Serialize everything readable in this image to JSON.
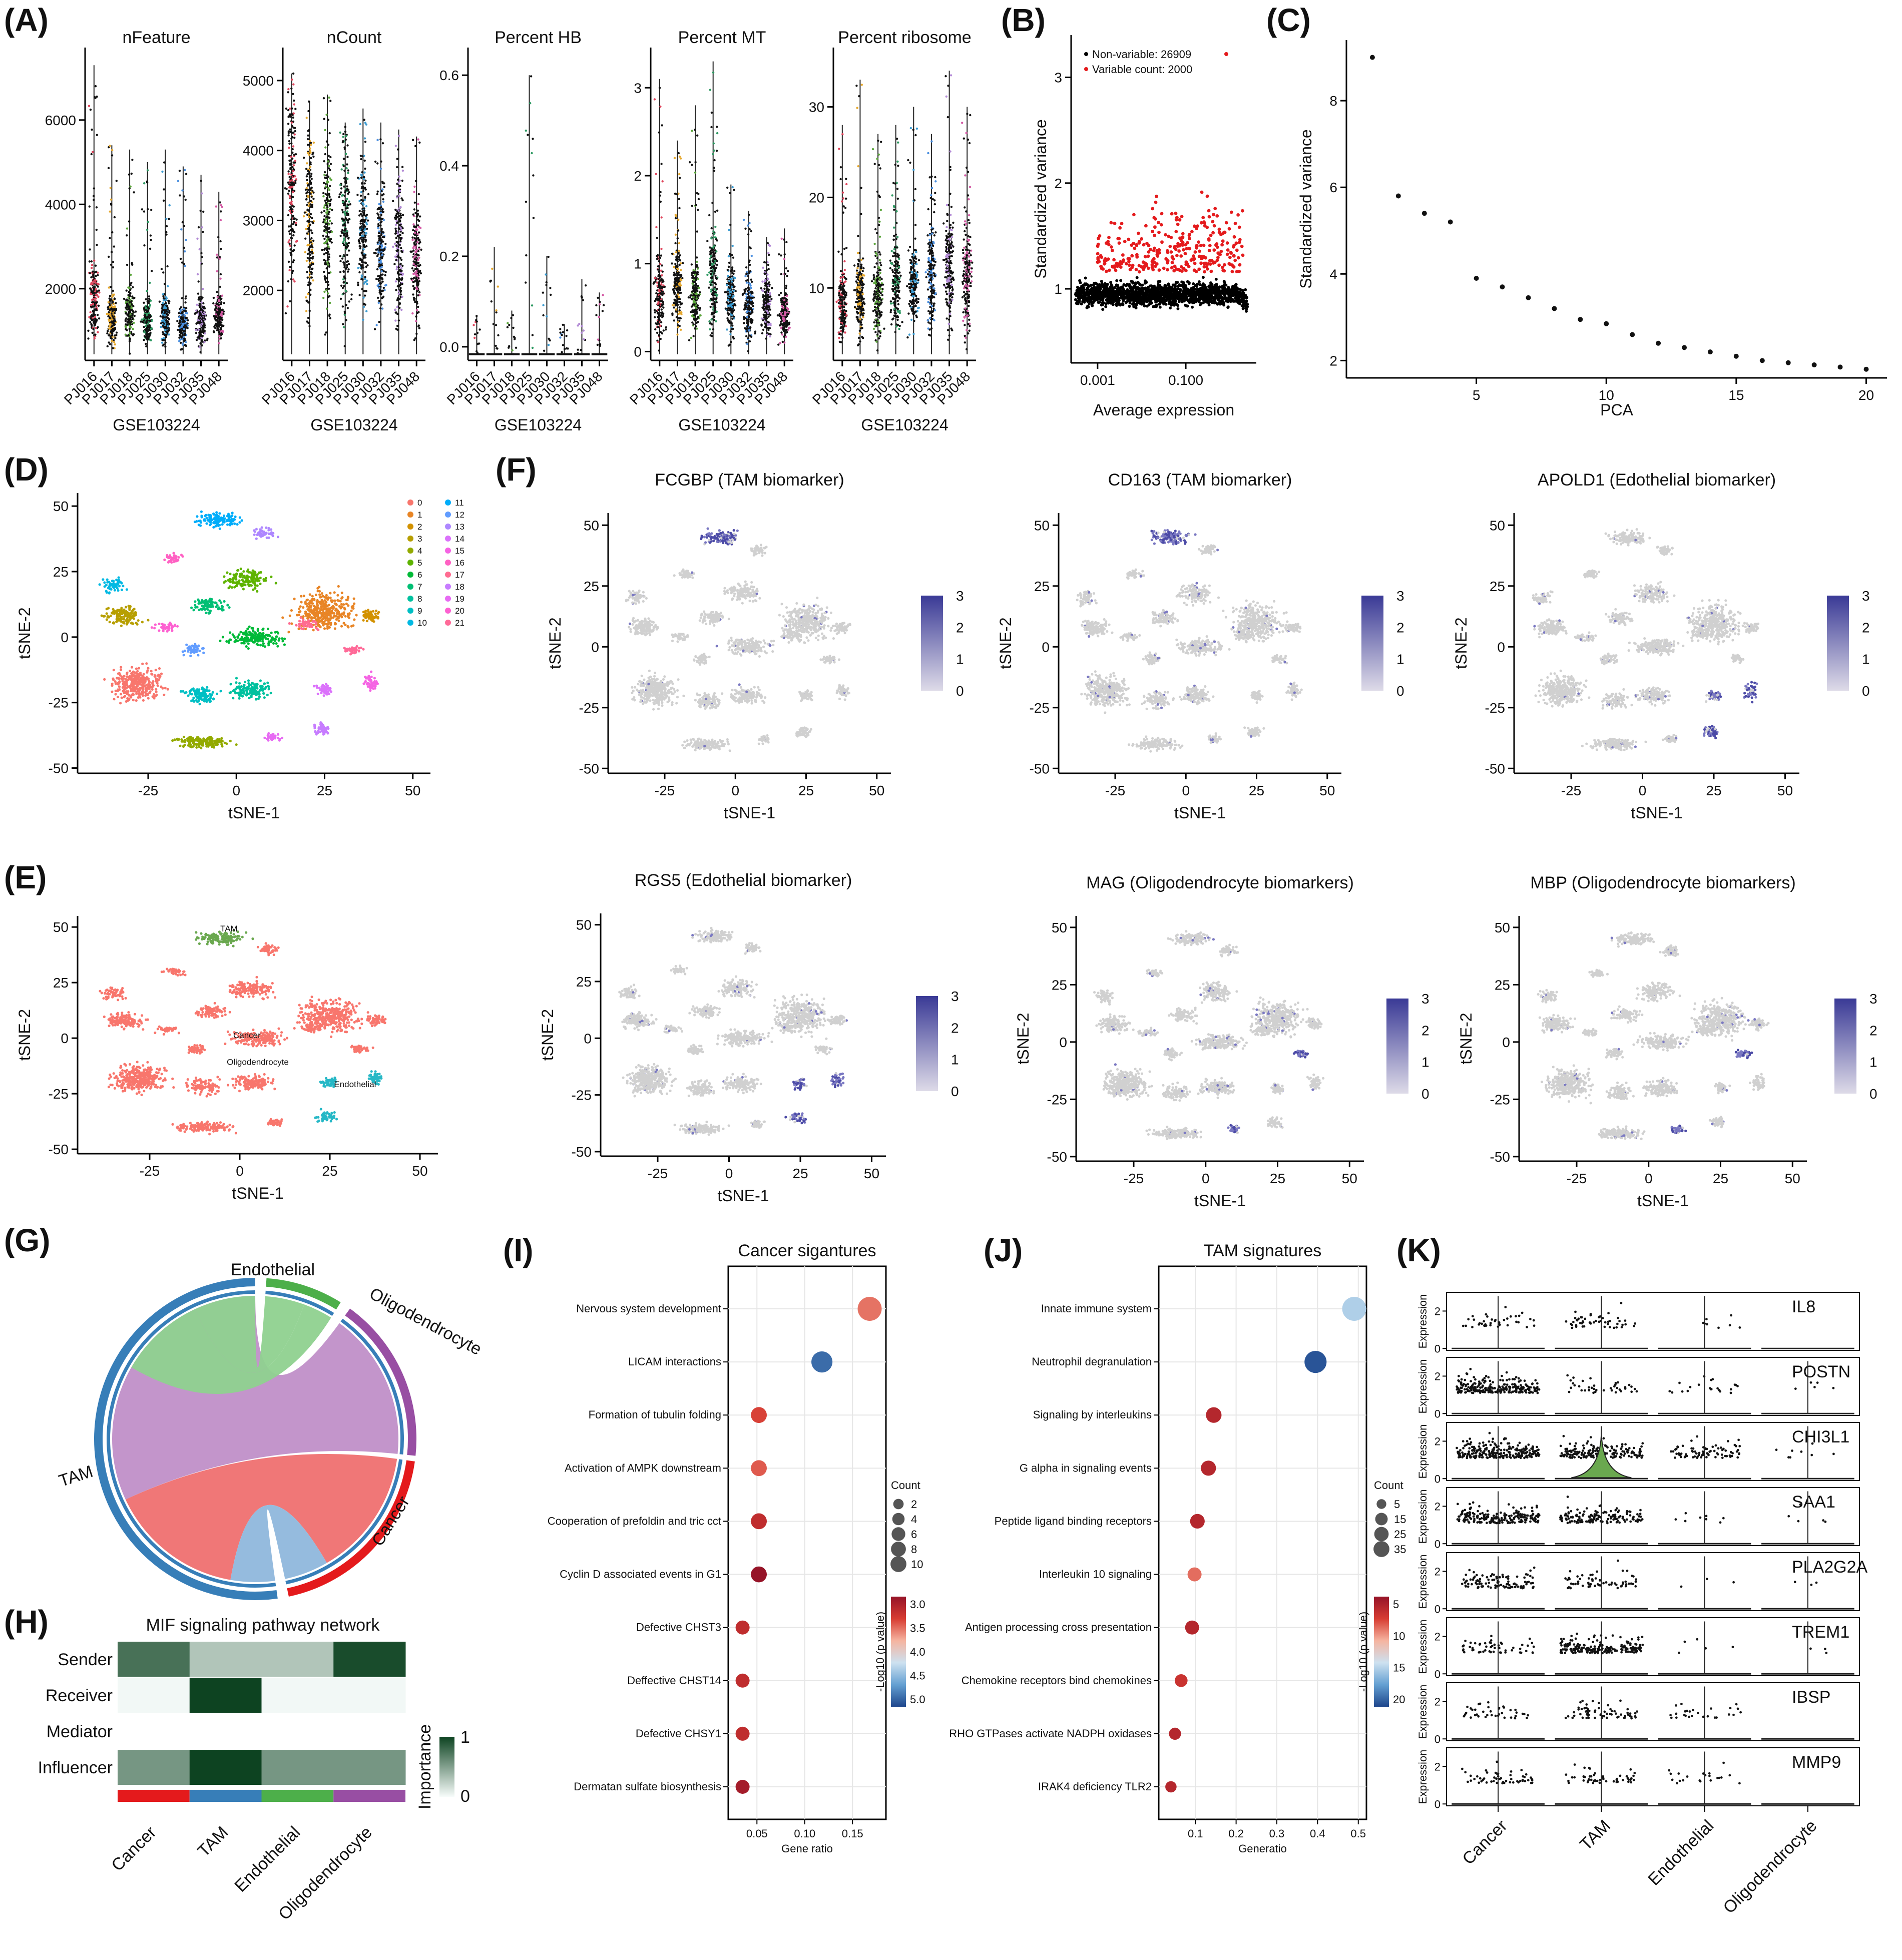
{
  "chart_data": [
    {
      "panel": "(A)",
      "type": "violin",
      "xlabel": "GSE103224",
      "samples": [
        "PJ016",
        "PJ017",
        "PJ018",
        "PJ025",
        "PJ030",
        "PJ032",
        "PJ035",
        "PJ048"
      ],
      "sample_colors": [
        "#e0455c",
        "#e6a82e",
        "#5ba53b",
        "#2f9a63",
        "#3a9bd1",
        "#4a8fe0",
        "#b38bd6",
        "#d45aa5"
      ],
      "subplots": [
        {
          "title": "nFeature",
          "ylim": [
            300,
            7600
          ],
          "yticks": [
            2000,
            4000,
            6000
          ],
          "tick_labels": [
            "2000",
            "4000",
            "6000"
          ],
          "medians": [
            1700,
            1300,
            1350,
            1200,
            1250,
            1150,
            1200,
            1300
          ],
          "upper": [
            7300,
            5400,
            5300,
            5000,
            5300,
            4900,
            4700,
            4300
          ]
        },
        {
          "title": "nCount",
          "ylim": [
            1000,
            5400
          ],
          "yticks": [
            2000,
            3000,
            4000,
            5000
          ],
          "tick_labels": [
            "2000",
            "3000",
            "4000",
            "5000"
          ],
          "medians": [
            3400,
            2900,
            2900,
            2850,
            2700,
            2500,
            2500,
            2400
          ],
          "upper": [
            5100,
            4700,
            4800,
            4400,
            4600,
            4400,
            4300,
            4200
          ]
        },
        {
          "title": "Percent HB",
          "ylim": [
            -0.03,
            0.65
          ],
          "yticks": [
            0.0,
            0.2,
            0.4,
            0.6
          ],
          "tick_labels": [
            "0.0",
            "0.2",
            "0.4",
            "0.6"
          ],
          "medians": [
            0,
            0,
            0,
            0,
            0,
            0,
            0,
            0
          ],
          "upper": [
            0.07,
            0.22,
            0.08,
            0.6,
            0.2,
            0.05,
            0.15,
            0.12
          ]
        },
        {
          "title": "Percent MT",
          "ylim": [
            -0.1,
            3.4
          ],
          "yticks": [
            0,
            1,
            2,
            3
          ],
          "tick_labels": [
            "0",
            "1",
            "2",
            "3"
          ],
          "medians": [
            0.6,
            0.7,
            0.6,
            0.8,
            0.6,
            0.5,
            0.5,
            0.4
          ],
          "upper": [
            3.1,
            2.4,
            2.8,
            3.3,
            1.9,
            1.6,
            1.3,
            1.4
          ]
        },
        {
          "title": "Percent ribosome",
          "ylim": [
            2,
            36
          ],
          "yticks": [
            10,
            20,
            30
          ],
          "tick_labels": [
            "10",
            "20",
            "30"
          ],
          "medians": [
            8,
            9,
            9,
            10,
            10,
            11,
            12,
            11
          ],
          "upper": [
            28,
            33,
            27,
            28,
            30,
            27,
            34,
            30
          ]
        }
      ]
    },
    {
      "panel": "(B)",
      "type": "scatter",
      "xlabel": "Average expression",
      "ylabel": "Standardized variance",
      "xlog_range": [
        -3.6,
        0.6
      ],
      "xticks": [
        -3,
        -1
      ],
      "xtick_labels": [
        "0.001",
        "0.100"
      ],
      "ylim": [
        0.3,
        3.4
      ],
      "yticks": [
        1,
        2,
        3
      ],
      "ytick_labels": [
        "1",
        "2",
        "3"
      ],
      "legend": [
        "Non-variable: 26909",
        "Variable count: 2000"
      ],
      "series_colors": [
        "#000000",
        "#e41a1c"
      ],
      "nonvariable_count": 26909,
      "variable_count": 2000
    },
    {
      "panel": "(C)",
      "type": "scatter",
      "xlabel": "PCA",
      "ylabel": "Standardized variance",
      "x": [
        1,
        2,
        3,
        4,
        5,
        6,
        7,
        8,
        9,
        10,
        11,
        12,
        13,
        14,
        15,
        16,
        17,
        18,
        19,
        20
      ],
      "y": [
        9.0,
        5.8,
        5.4,
        5.2,
        3.9,
        3.7,
        3.45,
        3.2,
        2.95,
        2.85,
        2.6,
        2.4,
        2.3,
        2.2,
        2.1,
        2.0,
        1.95,
        1.9,
        1.85,
        1.8
      ],
      "xlim": [
        0,
        20.8
      ],
      "ylim": [
        1.6,
        9.4
      ],
      "xticks": [
        5,
        10,
        15,
        20
      ],
      "yticks": [
        2,
        4,
        6,
        8
      ]
    },
    {
      "panel": "(D)",
      "type": "scatter",
      "title": "",
      "xlabel": "tSNE-1",
      "ylabel": "tSNE-2",
      "xlim": [
        -45,
        55
      ],
      "ylim": [
        -52,
        55
      ],
      "xticks": [
        -25,
        0,
        25,
        50
      ],
      "yticks": [
        -50,
        -25,
        0,
        25,
        50
      ],
      "clusters": [
        "0",
        "1",
        "2",
        "3",
        "4",
        "5",
        "6",
        "7",
        "8",
        "9",
        "10",
        "11",
        "12",
        "13",
        "14",
        "15",
        "16",
        "17",
        "18",
        "19",
        "20",
        "21"
      ],
      "cluster_colors": [
        "#F8766D",
        "#E88526",
        "#D39200",
        "#B79F00",
        "#93AA00",
        "#5EB300",
        "#00BA38",
        "#00BF74",
        "#00C19F",
        "#00BFC4",
        "#00B9E3",
        "#00ADFA",
        "#619CFF",
        "#AE87FF",
        "#DB72FB",
        "#F564E3",
        "#FF61C3",
        "#FF6C91",
        "#C77CFF",
        "#E76BF3",
        "#FD61D1",
        "#FF6A98"
      ]
    },
    {
      "panel": "(E)",
      "type": "scatter",
      "xlabel": "tSNE-1",
      "ylabel": "tSNE-2",
      "xlim": [
        -45,
        55
      ],
      "ylim": [
        -52,
        55
      ],
      "xticks": [
        -25,
        0,
        25,
        50
      ],
      "yticks": [
        -50,
        -25,
        0,
        25,
        50
      ],
      "labels": [
        "TAM",
        "Cancer",
        "Oligodendrocyte",
        "Endothelial"
      ],
      "label_colors": [
        "#6aa84f",
        "#f8766d",
        "#f8766d",
        "#26b8c6"
      ]
    },
    {
      "panel": "(F)",
      "type": "scatter",
      "xlabel": "tSNE-1",
      "ylabel": "tSNE-2",
      "xlim": [
        -45,
        55
      ],
      "ylim": [
        -52,
        55
      ],
      "xticks": [
        -25,
        0,
        25,
        50
      ],
      "yticks": [
        -50,
        -25,
        0,
        25,
        50
      ],
      "colorbar_ticks": [
        "0",
        "1",
        "2",
        "3"
      ],
      "colorbar_colors": [
        "#dedbe8",
        "#3a3a96"
      ],
      "subplots": [
        {
          "title": "FCGBP (TAM biomarker)",
          "hot": "TAM"
        },
        {
          "title": "CD163 (TAM biomarker)",
          "hot": "TAM"
        },
        {
          "title": "APOLD1 (Edothelial biomarker)",
          "hot": "Endothelial"
        },
        {
          "title": "RGS5 (Edothelial biomarker)",
          "hot": "Endothelial"
        },
        {
          "title": "MAG (Oligodendrocyte biomarkers)",
          "hot": "Oligodendrocyte"
        },
        {
          "title": "MBP (Oligodendrocyte biomarkers)",
          "hot": "Oligodendrocyte"
        }
      ]
    },
    {
      "panel": "(G)",
      "type": "chord",
      "sectors": [
        {
          "name": "Endothelial",
          "color": "#4daf4a"
        },
        {
          "name": "Oligodendrocyte",
          "color": "#984ea3"
        },
        {
          "name": "Cancer",
          "color": "#e41a1c"
        },
        {
          "name": "TAM",
          "color": "#377eb8"
        }
      ],
      "links": [
        {
          "from": "TAM",
          "to": "Oligodendrocyte",
          "color": "#c08fc8"
        },
        {
          "from": "TAM",
          "to": "Cancer",
          "color": "#ef7070"
        },
        {
          "from": "TAM",
          "to": "Endothelial",
          "color": "#8fd18f"
        },
        {
          "from": "TAM",
          "to": "TAM",
          "color": "#8fb7dc"
        },
        {
          "from": "Endothelial",
          "to": "TAM",
          "color": "#8fd18f"
        }
      ]
    },
    {
      "panel": "(H)",
      "type": "heatmap",
      "title": "MIF signaling pathway network",
      "rows": [
        "Sender",
        "Receiver",
        "Mediator",
        "Influencer"
      ],
      "columns": [
        "Cancer",
        "TAM",
        "Endothelial",
        "Oligodendrocyte"
      ],
      "column_colors": [
        "#e41a1c",
        "#377eb8",
        "#4daf4a",
        "#984ea3"
      ],
      "values": [
        [
          0.75,
          0.3,
          0.3,
          0.95
        ],
        [
          0.02,
          1.0,
          0.02,
          0.02
        ],
        [
          0,
          0,
          0,
          0
        ],
        [
          0.55,
          1.0,
          0.55,
          0.55
        ]
      ],
      "colorbar_label": "Importance",
      "colorbar_ticks": [
        "0",
        "1"
      ]
    },
    {
      "panel": "(I)",
      "type": "scatter",
      "title": "Cancer sigantures",
      "xlabel": "Gene ratio",
      "xlim": [
        0.02,
        0.185
      ],
      "xticks": [
        0.05,
        0.1,
        0.15
      ],
      "xtick_labels": [
        "0.05",
        "0.10",
        "0.15"
      ],
      "terms": [
        "Nervous system development",
        "LICAM interactions",
        "Formation of tubulin folding",
        "Activation of AMPK downstream",
        "Cooperation of prefoldin and  tric cct",
        "Cyclin D associated events in G1",
        "Defective CHST3",
        "Deffective CHST14",
        "Defective CHSY1",
        "Dermatan sulfate biosynthesis"
      ],
      "gene_ratio": [
        0.168,
        0.118,
        0.052,
        0.052,
        0.052,
        0.052,
        0.035,
        0.035,
        0.035,
        0.035
      ],
      "count": [
        10,
        7,
        3,
        3,
        3,
        3,
        2,
        2,
        2,
        2
      ],
      "neglog10p": [
        3.6,
        5.1,
        3.4,
        3.5,
        3.2,
        2.9,
        3.2,
        3.2,
        3.2,
        3.0
      ],
      "size_legend": {
        "title": "Count",
        "values": [
          2,
          4,
          6,
          8,
          10
        ]
      },
      "color_legend": {
        "title": "-Log10 (p value)",
        "ticks": [
          "3.0",
          "3.5",
          "4.0",
          "4.5",
          "5.0"
        ],
        "range": [
          2.9,
          5.3
        ]
      }
    },
    {
      "panel": "(J)",
      "type": "scatter",
      "title": "TAM signatures",
      "xlabel": "Generatio",
      "xlim": [
        0.01,
        0.52
      ],
      "xticks": [
        0.1,
        0.2,
        0.3,
        0.4,
        0.5
      ],
      "xtick_labels": [
        "0.1",
        "0.2",
        "0.3",
        "0.4",
        "0.5"
      ],
      "terms": [
        "Innate immune system",
        "Neutrophil degranulation",
        "Signaling by interleukins",
        "G alpha in signaling events",
        "Peptide ligand binding receptors",
        "Interleukin 10 signaling",
        "Antigen processing cross presentation",
        "Chemokine receptors bind chemokines",
        "RHO GTPases activate NADPH oxidases",
        "IRAK4 deficiency TLR2"
      ],
      "gene_ratio": [
        0.49,
        0.395,
        0.145,
        0.132,
        0.105,
        0.098,
        0.092,
        0.065,
        0.05,
        0.04
      ],
      "count": [
        35,
        28,
        10,
        9,
        8,
        7,
        7,
        5,
        4,
        3
      ],
      "neglog10p": [
        15,
        20,
        6,
        6,
        6,
        9,
        6,
        7,
        6,
        6
      ],
      "size_legend": {
        "title": "Count",
        "values": [
          5,
          15,
          25,
          35
        ]
      },
      "color_legend": {
        "title": "-Log10 (p value)",
        "ticks": [
          "5",
          "10",
          "15",
          "20"
        ],
        "range": [
          4.5,
          20.5
        ]
      }
    },
    {
      "panel": "(K)",
      "type": "violin",
      "ylabel": "Expression",
      "genes": [
        "IL8",
        "POSTN",
        "CHI3L1",
        "SAA1",
        "PLA2G2A",
        "TREM1",
        "IBSP",
        "MMP9"
      ],
      "groups": [
        "Cancer",
        "TAM",
        "Endothelial",
        "Oligodendrocyte"
      ],
      "yticks": [
        0,
        2
      ],
      "ytick_labels": [
        "0",
        "2"
      ],
      "density": [
        [
          0.15,
          0.2,
          0.03,
          0.0
        ],
        [
          0.95,
          0.15,
          0.08,
          0.02
        ],
        [
          0.95,
          0.65,
          0.3,
          0.03
        ],
        [
          0.75,
          0.55,
          0.03,
          0.02
        ],
        [
          0.4,
          0.25,
          0.01,
          0.01
        ],
        [
          0.2,
          0.75,
          0.02,
          0.01
        ],
        [
          0.15,
          0.25,
          0.1,
          0.0
        ],
        [
          0.2,
          0.2,
          0.08,
          0.0
        ]
      ]
    }
  ]
}
